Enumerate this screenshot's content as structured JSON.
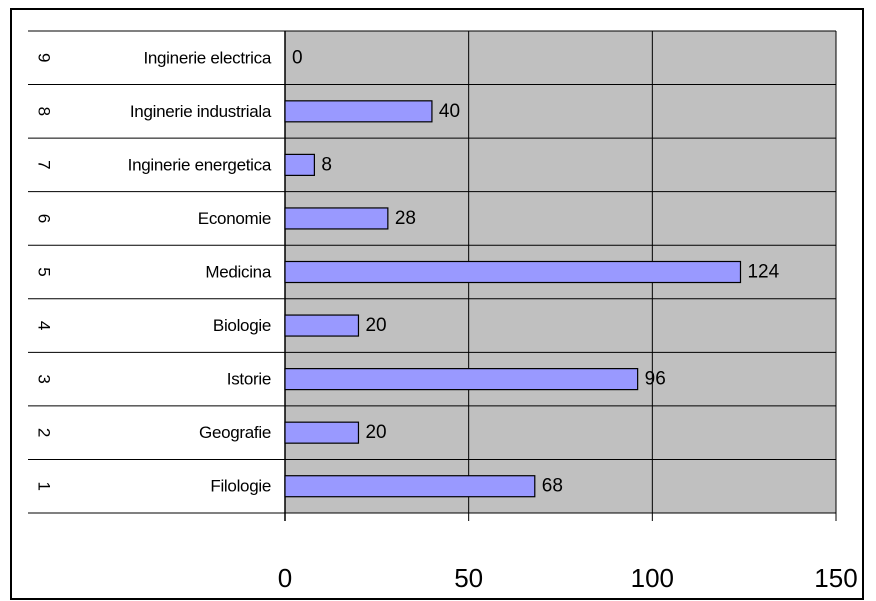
{
  "chart_data": {
    "type": "bar",
    "orientation": "horizontal",
    "categories": [
      {
        "number": "1",
        "label": "Filologie"
      },
      {
        "number": "2",
        "label": "Geografie"
      },
      {
        "number": "3",
        "label": "Istorie"
      },
      {
        "number": "4",
        "label": "Biologie"
      },
      {
        "number": "5",
        "label": "Medicina"
      },
      {
        "number": "6",
        "label": "Economie"
      },
      {
        "number": "7",
        "label": "Inginerie energetica"
      },
      {
        "number": "8",
        "label": "Inginerie industriala"
      },
      {
        "number": "9",
        "label": "Inginerie electrica"
      }
    ],
    "values": [
      68,
      20,
      96,
      20,
      124,
      28,
      8,
      40,
      0
    ],
    "data_labels": [
      "68",
      "20",
      "96",
      "20",
      "124",
      "28",
      "8",
      "40",
      "0"
    ],
    "xlim": [
      0,
      150
    ],
    "x_ticks": [
      "0",
      "50",
      "100",
      "150"
    ],
    "grid": true,
    "legend": false,
    "colors": {
      "bar_fill": "#9999ff",
      "bar_stroke": "#000000",
      "plot_background": "#c0c0c0",
      "gridline": "#000000"
    }
  }
}
